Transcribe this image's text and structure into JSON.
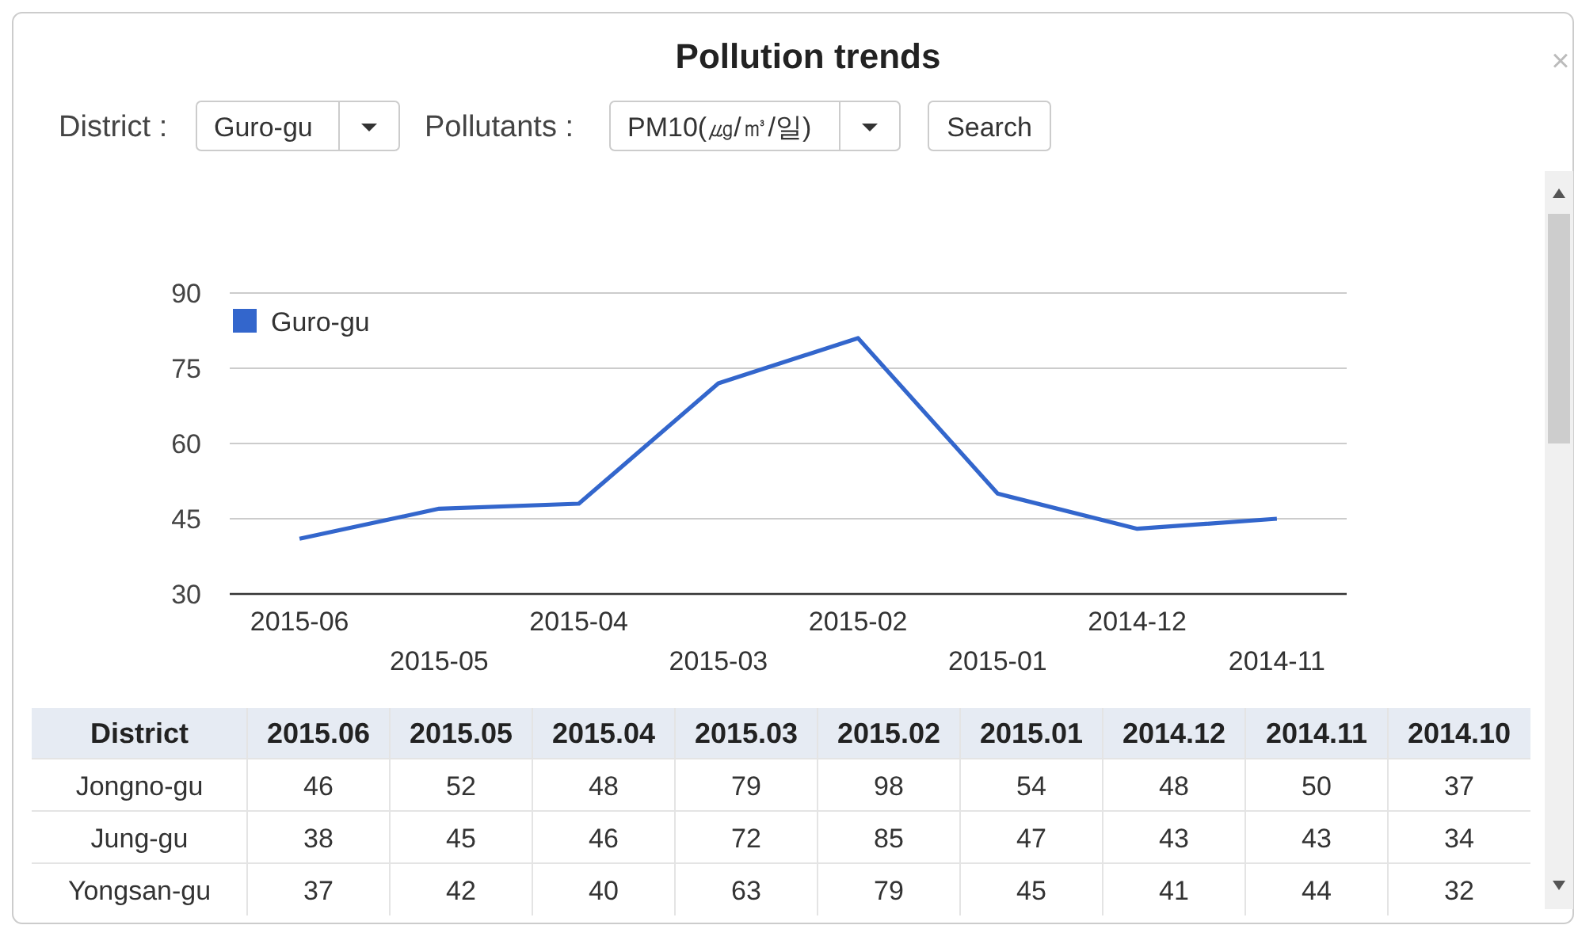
{
  "chart_data": [
    {
      "type": "line",
      "title": "Pollution trends",
      "annotations": [
        "District :",
        "Guro-gu",
        "Pollutants :",
        "PM10(㎍/㎥/일)",
        "Search",
        "×"
      ],
      "categories": [
        "2015-06",
        "2015-05",
        "2015-04",
        "2015-03",
        "2015-02",
        "2015-01",
        "2014-12",
        "2014-11"
      ],
      "series": [
        {
          "name": "Guro-gu",
          "color": "#3366cc",
          "values": [
            41,
            47,
            48,
            72,
            81,
            50,
            43,
            45
          ]
        }
      ],
      "ylim": [
        30,
        90
      ],
      "yticks": [
        30,
        45,
        60,
        75,
        90
      ],
      "grid": "y",
      "legend": "top left"
    },
    {
      "type": "heatmap",
      "ylabel": "District",
      "data_labels": true,
      "categories": [
        "2015.06",
        "2015.05",
        "2015.04",
        "2015.03",
        "2015.02",
        "2015.01",
        "2014.12",
        "2014.11",
        "2014.10"
      ],
      "y_categories": [
        "Jongno-gu",
        "Jung-gu",
        "Yongsan-gu"
      ],
      "cells": [
        [
          46,
          52,
          48,
          79,
          98,
          54,
          48,
          50,
          37
        ],
        [
          38,
          45,
          46,
          72,
          85,
          47,
          43,
          43,
          34
        ],
        [
          37,
          42,
          40,
          63,
          79,
          45,
          41,
          44,
          32
        ]
      ]
    }
  ]
}
